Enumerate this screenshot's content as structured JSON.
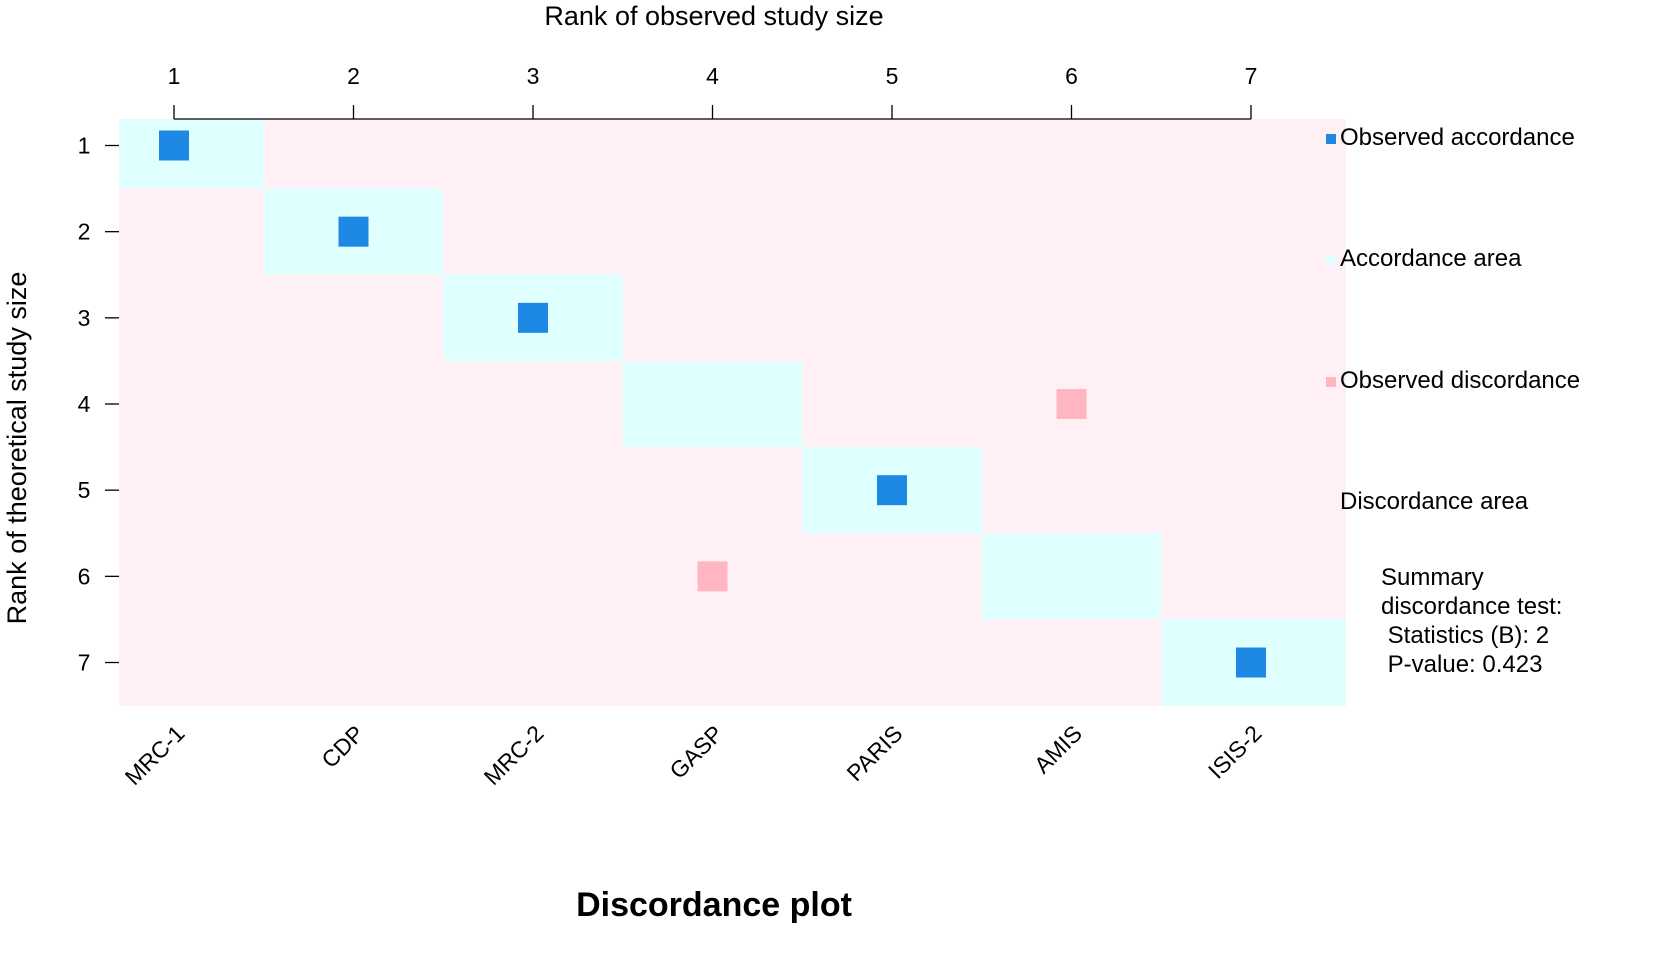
{
  "chart_data": {
    "type": "heatmap",
    "title": "Discordance plot",
    "xlabel_top": "Rank of observed study size",
    "ylabel": "Rank of theoretical study size",
    "x_ticks": [
      "1",
      "2",
      "3",
      "4",
      "5",
      "6",
      "7"
    ],
    "y_ticks": [
      "1",
      "2",
      "3",
      "4",
      "5",
      "6",
      "7"
    ],
    "studies": [
      "MRC-1",
      "CDP",
      "MRC-2",
      "GASP",
      "PARIS",
      "AMIS",
      "ISIS-2"
    ],
    "observed_accordance": [
      {
        "observed_rank": 1,
        "theoretical_rank": 1
      },
      {
        "observed_rank": 2,
        "theoretical_rank": 2
      },
      {
        "observed_rank": 3,
        "theoretical_rank": 3
      },
      {
        "observed_rank": 5,
        "theoretical_rank": 5
      },
      {
        "observed_rank": 7,
        "theoretical_rank": 7
      }
    ],
    "observed_discordance": [
      {
        "observed_rank": 6,
        "theoretical_rank": 4
      },
      {
        "observed_rank": 4,
        "theoretical_rank": 6
      }
    ],
    "legend_position": "right"
  },
  "legend": {
    "items": [
      {
        "label": "Observed accordance",
        "color": "#1e88e5"
      },
      {
        "label": "Accordance area",
        "color": "#e0ffff"
      },
      {
        "label": "Observed discordance",
        "color": "#ffb6c1"
      },
      {
        "label": "Discordance area",
        "color": "#fff0f5"
      }
    ]
  },
  "summary": {
    "line1": "Summary",
    "line2": "discordance test:",
    "line3": " Statistics (B): 2",
    "line4": " P-value: 0.423"
  },
  "colors": {
    "observed_accordance": "#1e88e5",
    "accordance_area": "#e0ffff",
    "observed_discordance": "#ffb6c1",
    "discordance_area": "#fff0f5"
  }
}
